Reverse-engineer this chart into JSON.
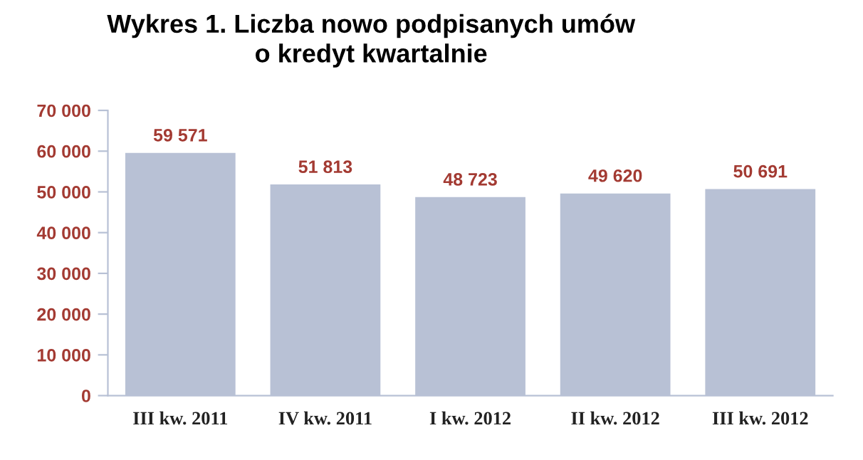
{
  "chart_data": {
    "type": "bar",
    "title": "Wykres 1. Liczba nowo podpisanych umów\no kredyt kwartalnie",
    "categories": [
      "III kw. 2011",
      "IV kw. 2011",
      "I kw. 2012",
      "II kw. 2012",
      "III kw. 2012"
    ],
    "values": [
      59571,
      51813,
      48723,
      49620,
      50691
    ],
    "color": "#b8c1d5",
    "value_labels": [
      "59 571",
      "51 813",
      "48 723",
      "49 620",
      "50 691"
    ],
    "ylim": [
      0,
      70000
    ],
    "yticks": [
      {
        "value": 0,
        "label": "0"
      },
      {
        "value": 10000,
        "label": "10 000"
      },
      {
        "value": 20000,
        "label": "20 000"
      },
      {
        "value": 30000,
        "label": "30 000"
      },
      {
        "value": 40000,
        "label": "40 000"
      },
      {
        "value": 50000,
        "label": "50 000"
      },
      {
        "value": 60000,
        "label": "60 000"
      },
      {
        "value": 70000,
        "label": "70 000"
      }
    ],
    "grid": false,
    "legend": false
  }
}
